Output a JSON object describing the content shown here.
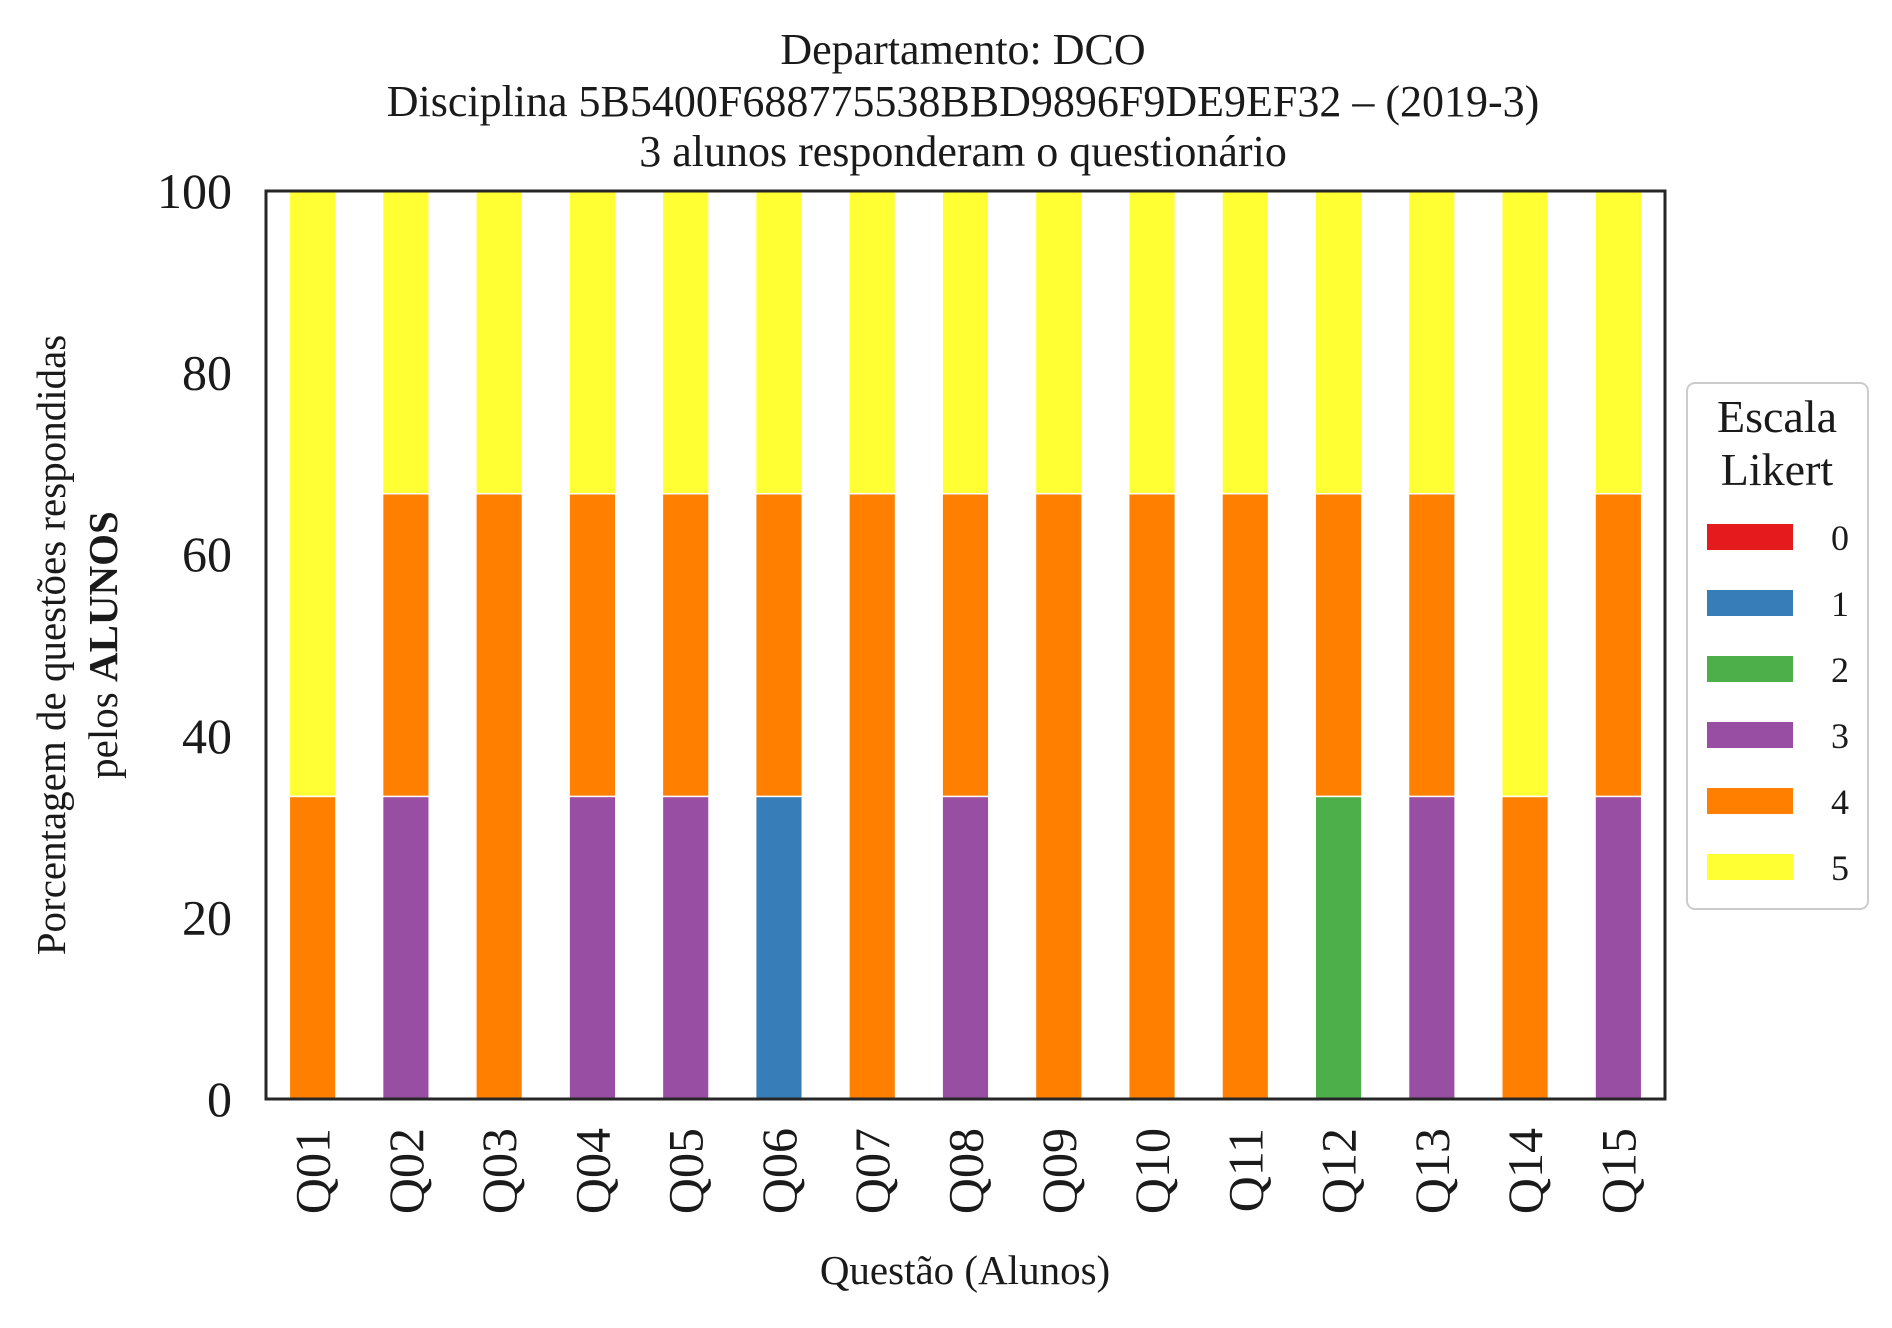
{
  "chart_data": {
    "type": "bar",
    "stacked": true,
    "title_lines": [
      "Departamento: DCO",
      "Disciplina 5B5400F688775538BBD9896F9DE9EF32 – (2019-3)",
      "3 alunos responderam o questionário"
    ],
    "xlabel": "Questão (Alunos)",
    "ylabel_line1": "Porcentagem de questões respondidas",
    "ylabel_line2_prefix": "pelos ",
    "ylabel_line2_bold": "ALUNOS",
    "ylim": [
      0,
      100
    ],
    "yticks": [
      "0",
      "20",
      "40",
      "60",
      "80",
      "100"
    ],
    "categories": [
      "Q01",
      "Q02",
      "Q03",
      "Q04",
      "Q05",
      "Q06",
      "Q07",
      "Q08",
      "Q09",
      "Q10",
      "Q11",
      "Q12",
      "Q13",
      "Q14",
      "Q15"
    ],
    "legend_title_line1": "Escala",
    "legend_title_line2": "Likert",
    "legend_position": "right",
    "grid": false,
    "series": [
      {
        "name": "0",
        "color": "#e41a1c",
        "values": [
          0,
          0,
          0,
          0,
          0,
          0,
          0,
          0,
          0,
          0,
          0,
          0,
          0,
          0,
          0
        ]
      },
      {
        "name": "1",
        "color": "#377eb8",
        "values": [
          0,
          0,
          0,
          0,
          0,
          33.33,
          0,
          0,
          0,
          0,
          0,
          0,
          0,
          0,
          0
        ]
      },
      {
        "name": "2",
        "color": "#4daf4a",
        "values": [
          0,
          0,
          0,
          0,
          0,
          0,
          0,
          0,
          0,
          0,
          0,
          33.33,
          0,
          0,
          0
        ]
      },
      {
        "name": "3",
        "color": "#984ea3",
        "values": [
          0,
          33.33,
          0,
          33.33,
          33.33,
          0,
          0,
          33.33,
          0,
          0,
          0,
          0,
          33.33,
          0,
          33.33
        ]
      },
      {
        "name": "4",
        "color": "#ff7f00",
        "values": [
          33.33,
          33.33,
          66.67,
          33.33,
          33.33,
          33.33,
          66.67,
          33.33,
          66.67,
          66.67,
          66.67,
          33.33,
          33.33,
          33.33,
          33.33
        ]
      },
      {
        "name": "5",
        "color": "#ffff33",
        "values": [
          66.67,
          33.33,
          33.33,
          33.33,
          33.33,
          33.33,
          33.33,
          33.33,
          33.33,
          33.33,
          33.33,
          33.33,
          33.33,
          66.67,
          33.33
        ]
      }
    ]
  }
}
